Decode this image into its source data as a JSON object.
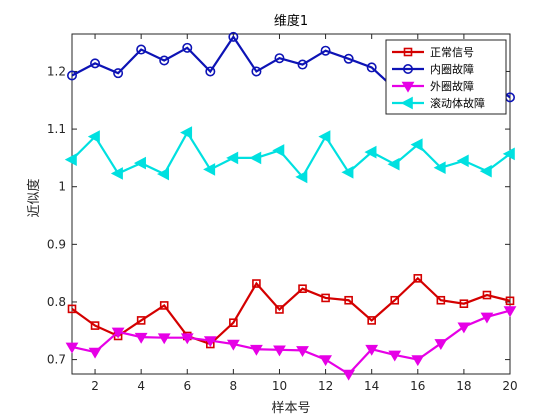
{
  "chart_data": {
    "type": "line",
    "title": "维度1",
    "xlabel": "样本号",
    "ylabel": "近似度",
    "xlim": [
      1,
      20
    ],
    "ylim": [
      0.675,
      1.265
    ],
    "xticks": [
      2,
      4,
      6,
      8,
      10,
      12,
      14,
      16,
      18,
      20
    ],
    "yticks": [
      0.7,
      0.8,
      0.9,
      1.0,
      1.1,
      1.2
    ],
    "ytick_labels": [
      "0.7",
      "0.8",
      "0.9",
      "1",
      "1.1",
      "1.2"
    ],
    "grid": false,
    "legend_position": "top-right",
    "x": [
      1,
      2,
      3,
      4,
      5,
      6,
      7,
      8,
      9,
      10,
      11,
      12,
      13,
      14,
      15,
      16,
      17,
      18,
      19,
      20
    ],
    "series": [
      {
        "name": "正常信号",
        "color": "#d40000",
        "marker": "square",
        "values": [
          0.788,
          0.759,
          0.741,
          0.768,
          0.794,
          0.741,
          0.727,
          0.764,
          0.832,
          0.787,
          0.823,
          0.807,
          0.803,
          0.768,
          0.803,
          0.841,
          0.803,
          0.797,
          0.812,
          0.802
        ]
      },
      {
        "name": "内圈故障",
        "color": "#0d13b5",
        "marker": "circle",
        "values": [
          1.193,
          1.214,
          1.197,
          1.238,
          1.219,
          1.241,
          1.2,
          1.26,
          1.2,
          1.223,
          1.212,
          1.236,
          1.222,
          1.207,
          1.17,
          1.19,
          1.175,
          1.185,
          1.185,
          1.155
        ]
      },
      {
        "name": "外圈故障",
        "color": "#e600e6",
        "marker": "triangle-down",
        "values": [
          0.722,
          0.713,
          0.748,
          0.739,
          0.738,
          0.738,
          0.733,
          0.727,
          0.718,
          0.717,
          0.716,
          0.7,
          0.675,
          0.718,
          0.708,
          0.7,
          0.728,
          0.757,
          0.774,
          0.785
        ]
      },
      {
        "name": "滚动体故障",
        "color": "#00e0e0",
        "marker": "triangle-left",
        "values": [
          1.047,
          1.087,
          1.023,
          1.041,
          1.022,
          1.094,
          1.03,
          1.05,
          1.05,
          1.063,
          1.017,
          1.087,
          1.025,
          1.06,
          1.039,
          1.073,
          1.033,
          1.045,
          1.027,
          1.057
        ]
      }
    ]
  }
}
